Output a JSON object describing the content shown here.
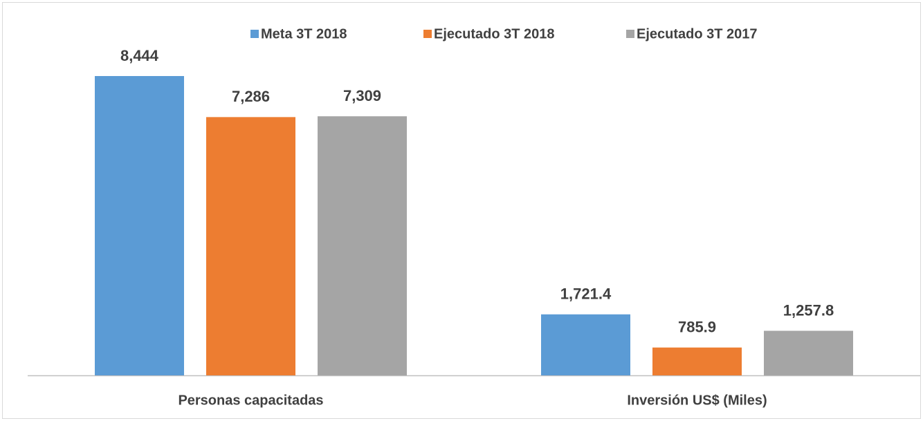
{
  "chart_data": {
    "type": "bar",
    "categories": [
      "Personas capacitadas",
      "Inversión US$ (Miles)"
    ],
    "series": [
      {
        "name": "Meta 3T 2018",
        "color": "#5b9bd5",
        "values": [
          8444,
          1721.4
        ],
        "value_labels": [
          "8,444",
          "1,721.4"
        ]
      },
      {
        "name": "Ejecutado 3T 2018",
        "color": "#ed7d31",
        "values": [
          7286,
          785.9
        ],
        "value_labels": [
          "7,286",
          "785.9"
        ]
      },
      {
        "name": "Ejecutado 3T 2017",
        "color": "#a5a5a5",
        "values": [
          7309,
          1257.8
        ],
        "value_labels": [
          "7,309",
          "1,257.8"
        ]
      }
    ],
    "legend": "top"
  }
}
